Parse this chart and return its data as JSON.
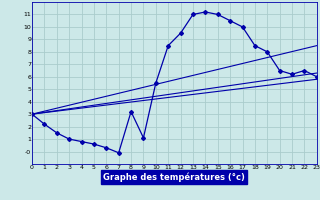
{
  "xlabel": "Graphe des températures (°c)",
  "background_color": "#cce8e8",
  "grid_color": "#aacccc",
  "line_color": "#0000aa",
  "xmin": 0,
  "xmax": 23,
  "ymin": -1,
  "ymax": 12,
  "yticks": [
    0,
    1,
    2,
    3,
    4,
    5,
    6,
    7,
    8,
    9,
    10,
    11
  ],
  "ytick_labels": [
    "-0",
    "1",
    "2",
    "3",
    "4",
    "5",
    "6",
    "7",
    "8",
    "9",
    "10",
    "11"
  ],
  "xticks": [
    0,
    1,
    2,
    3,
    4,
    5,
    6,
    7,
    8,
    9,
    10,
    11,
    12,
    13,
    14,
    15,
    16,
    17,
    18,
    19,
    20,
    21,
    22,
    23
  ],
  "curve1_x": [
    0,
    1,
    2,
    3,
    4,
    5,
    6,
    7,
    8,
    9,
    10,
    11,
    12,
    13,
    14,
    15,
    16,
    17,
    18,
    19,
    20,
    21,
    22,
    23
  ],
  "curve1_y": [
    3,
    2.2,
    1.5,
    1.0,
    0.8,
    0.6,
    0.3,
    -0.1,
    3.2,
    1.1,
    5.5,
    8.5,
    9.5,
    11.0,
    11.2,
    11.0,
    10.5,
    10.0,
    8.5,
    8.0,
    6.5,
    6.2,
    6.5,
    6.0
  ],
  "line1_x": [
    0,
    23
  ],
  "line1_y": [
    3.0,
    5.8
  ],
  "line2_x": [
    0,
    23
  ],
  "line2_y": [
    3.0,
    6.3
  ],
  "line3_x": [
    0,
    23
  ],
  "line3_y": [
    3.0,
    8.5
  ]
}
